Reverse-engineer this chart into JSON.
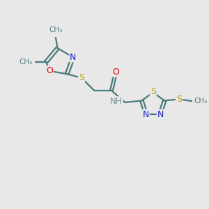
{
  "background_color": "#e8e8e8",
  "bond_color": "#4a7a7a",
  "n_color": "#2020cc",
  "o_color": "#dd0000",
  "s_color": "#b8a000",
  "h_color": "#7a9090",
  "line_width": 1.6,
  "figsize": [
    3.0,
    3.0
  ],
  "dpi": 100,
  "xlim": [
    0,
    10
  ],
  "ylim": [
    0,
    10
  ]
}
